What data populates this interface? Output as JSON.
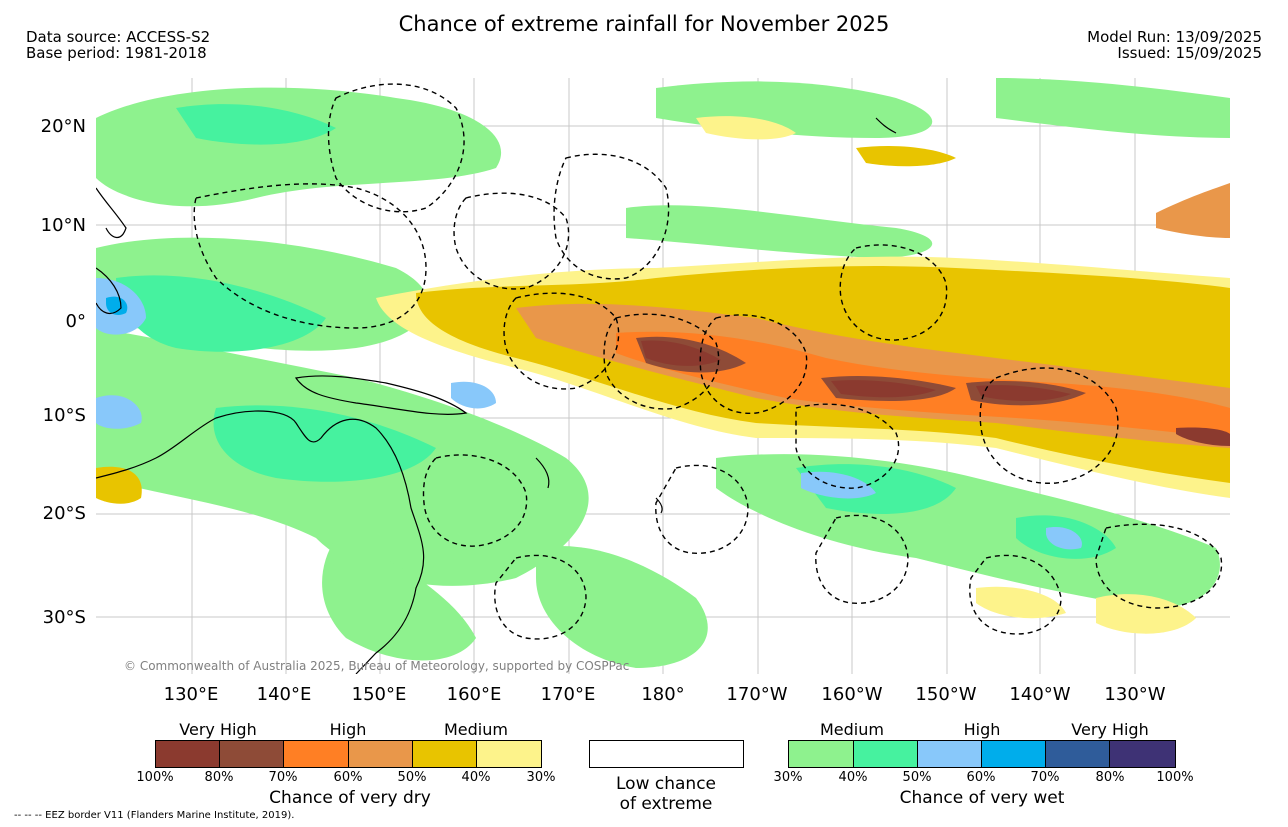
{
  "header": {
    "title": "Chance of extreme rainfall for November 2025",
    "data_source": "Data source: ACCESS-S2",
    "base_period": "Base period: 1981-2018",
    "model_run": "Model Run: 13/09/2025",
    "issued": "Issued: 15/09/2025"
  },
  "map": {
    "lat_labels": [
      "20°N",
      "10°N",
      "0°",
      "10°S",
      "20°S",
      "30°S"
    ],
    "lon_labels": [
      "130°E",
      "140°E",
      "150°E",
      "160°E",
      "170°E",
      "180°",
      "170°W",
      "160°W",
      "150°W",
      "140°W",
      "130°W"
    ],
    "copyright": "© Commonwealth of Australia 2025, Bureau of Meteorology, supported by COSPPac",
    "colors": {
      "ocean": "#ffffff",
      "grid": "#c8c8c8",
      "coast": "#000000",
      "eez": "#000000"
    }
  },
  "legend": {
    "dry": {
      "categories": [
        "Very High",
        "High",
        "Medium"
      ],
      "ticks": [
        "100%",
        "80%",
        "70%",
        "60%",
        "50%",
        "40%",
        "30%"
      ],
      "title": "Chance of very dry",
      "colors": [
        "#8b3a2f",
        "#8e4b37",
        "#ff7f24",
        "#e9974a",
        "#e8c400",
        "#fdf38b"
      ]
    },
    "low": {
      "line1": "Low chance",
      "line2": "of extreme",
      "color": "#ffffff"
    },
    "wet": {
      "categories": [
        "Medium",
        "High",
        "Very High"
      ],
      "ticks": [
        "30%",
        "40%",
        "50%",
        "60%",
        "70%",
        "80%",
        "100%"
      ],
      "title": "Chance of very wet",
      "colors": [
        "#8ef28e",
        "#46f29f",
        "#88c8fa",
        "#00adeb",
        "#2f5c9a",
        "#3e3275"
      ]
    }
  },
  "footnote": "--  --  -- EEZ border V11 (Flanders Marine Institute, 2019)."
}
